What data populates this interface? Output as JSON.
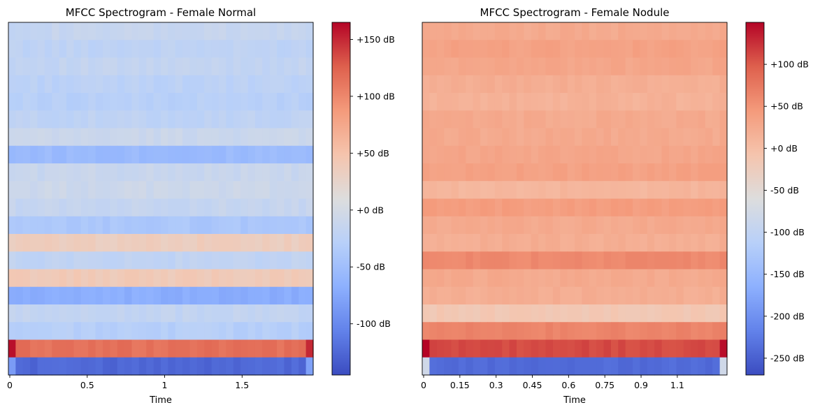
{
  "chart_data": [
    {
      "type": "heatmap",
      "title": "MFCC Spectrogram - Female Normal",
      "xlabel": "Time",
      "ylabel": "",
      "xlim": [
        0,
        1.95
      ],
      "x_ticks": [
        0,
        0.5,
        1,
        1.5
      ],
      "x_tick_labels": [
        "0",
        "0.5",
        "1",
        "1.5"
      ],
      "n_frames": 42,
      "coefficients_top_to_bottom_db": [
        -15,
        -22,
        -18,
        -25,
        -28,
        -22,
        -10,
        -55,
        -12,
        -8,
        -15,
        -40,
        35,
        -20,
        40,
        -70,
        -18,
        -30,
        115,
        -125
      ],
      "colorbar": {
        "range_db": [
          -145,
          165
        ],
        "ticks": [
          150,
          100,
          50,
          0,
          -50,
          -100
        ],
        "tick_labels": [
          "+150 dB",
          "+100 dB",
          "+50 dB",
          "+0 dB",
          "-50 dB",
          "-100 dB"
        ]
      }
    },
    {
      "type": "heatmap",
      "title": "MFCC Spectrogram - Female Nodule",
      "xlabel": "Time",
      "ylabel": "",
      "xlim": [
        0,
        1.25
      ],
      "x_ticks": [
        0,
        0.15,
        0.3,
        0.45,
        0.6,
        0.75,
        0.9,
        1.05
      ],
      "x_tick_labels": [
        "0",
        "0.15",
        "0.3",
        "0.45",
        "0.6",
        "0.75",
        "0.9",
        "1.1"
      ],
      "n_frames": 42,
      "coefficients_top_to_bottom_db": [
        25,
        35,
        30,
        20,
        15,
        25,
        25,
        30,
        35,
        10,
        40,
        25,
        20,
        60,
        25,
        20,
        -15,
        65,
        110,
        -240
      ],
      "colorbar": {
        "range_db": [
          -270,
          150
        ],
        "ticks": [
          100,
          50,
          0,
          -50,
          -100,
          -150,
          -200,
          -250
        ],
        "tick_labels": [
          "+100 dB",
          "+50 dB",
          "+0 dB",
          "-50 dB",
          "-100 dB",
          "-150 dB",
          "-200 dB",
          "-250 dB"
        ]
      }
    }
  ]
}
